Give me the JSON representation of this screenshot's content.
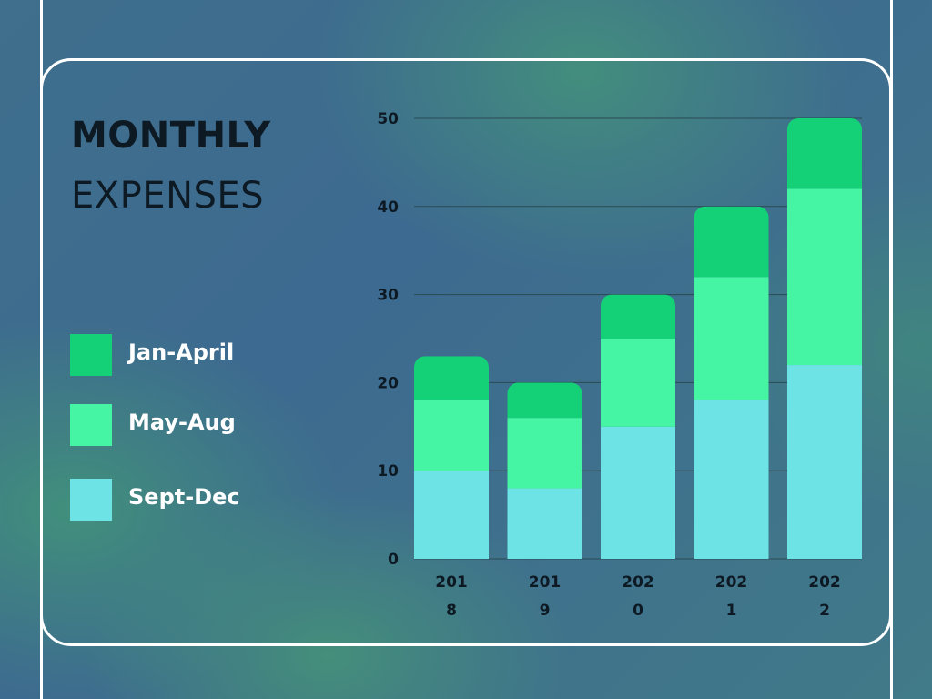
{
  "heading": {
    "bold": "MONTHLY",
    "light": "EXPENSES"
  },
  "colors": {
    "jan_april": "#14d077",
    "may_aug": "#45f5a3",
    "sept_dec": "#6de3e6",
    "grid": "#2a4a52",
    "text": "#0d1a24"
  },
  "legend": [
    {
      "label": "Jan-April",
      "color": "#14d077"
    },
    {
      "label": "May-Aug",
      "color": "#45f5a3"
    },
    {
      "label": "Sept-Dec",
      "color": "#6de3e6"
    }
  ],
  "chart_data": {
    "type": "bar",
    "stacked": true,
    "categories": [
      "2018",
      "2019",
      "2020",
      "2021",
      "2022"
    ],
    "category_labels": [
      [
        "201",
        "8"
      ],
      [
        "201",
        "9"
      ],
      [
        "202",
        "0"
      ],
      [
        "202",
        "1"
      ],
      [
        "202",
        "2"
      ]
    ],
    "series": [
      {
        "name": "Sept-Dec",
        "color": "#6de3e6",
        "values": [
          10,
          8,
          15,
          18,
          22
        ]
      },
      {
        "name": "May-Aug",
        "color": "#45f5a3",
        "values": [
          8,
          8,
          10,
          14,
          20
        ]
      },
      {
        "name": "Jan-April",
        "color": "#14d077",
        "values": [
          5,
          4,
          5,
          8,
          8
        ]
      }
    ],
    "ylim": [
      0,
      50
    ],
    "yticks": [
      0,
      10,
      20,
      30,
      40,
      50
    ],
    "grid": true,
    "legend_position": "left"
  }
}
